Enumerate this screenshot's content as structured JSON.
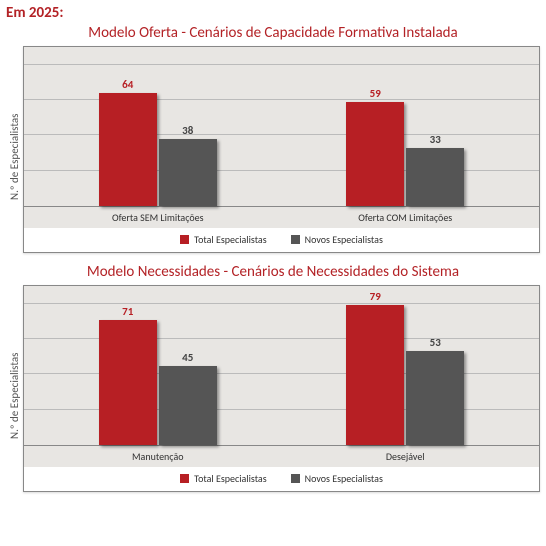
{
  "page_header": "Em 2025:",
  "charts": [
    {
      "title": "Modelo Oferta - Cenários de Capacidade Formativa Instalada",
      "ylabel": "N.º de Especialistas",
      "plot_bg": "#e8e6e3",
      "ymax": 90,
      "grid_step": 20,
      "series": [
        {
          "name": "Total Especialistas",
          "color": "#b71f24"
        },
        {
          "name": "Novos Especialistas",
          "color": "#555555"
        }
      ],
      "categories": [
        {
          "label": "Oferta SEM Limitações",
          "values": [
            64,
            38
          ]
        },
        {
          "label": "Oferta COM Limitações",
          "values": [
            59,
            33
          ]
        }
      ]
    },
    {
      "title": "Modelo Necessidades - Cenários de Necessidades do Sistema",
      "ylabel": "N.º de Especialistas",
      "plot_bg": "#e8e6e3",
      "ymax": 90,
      "grid_step": 20,
      "series": [
        {
          "name": "Total Especialistas",
          "color": "#b71f24"
        },
        {
          "name": "Novos Especialistas",
          "color": "#555555"
        }
      ],
      "categories": [
        {
          "label": "Manutenção",
          "values": [
            71,
            45
          ]
        },
        {
          "label": "Desejável",
          "values": [
            79,
            53
          ]
        }
      ]
    }
  ]
}
